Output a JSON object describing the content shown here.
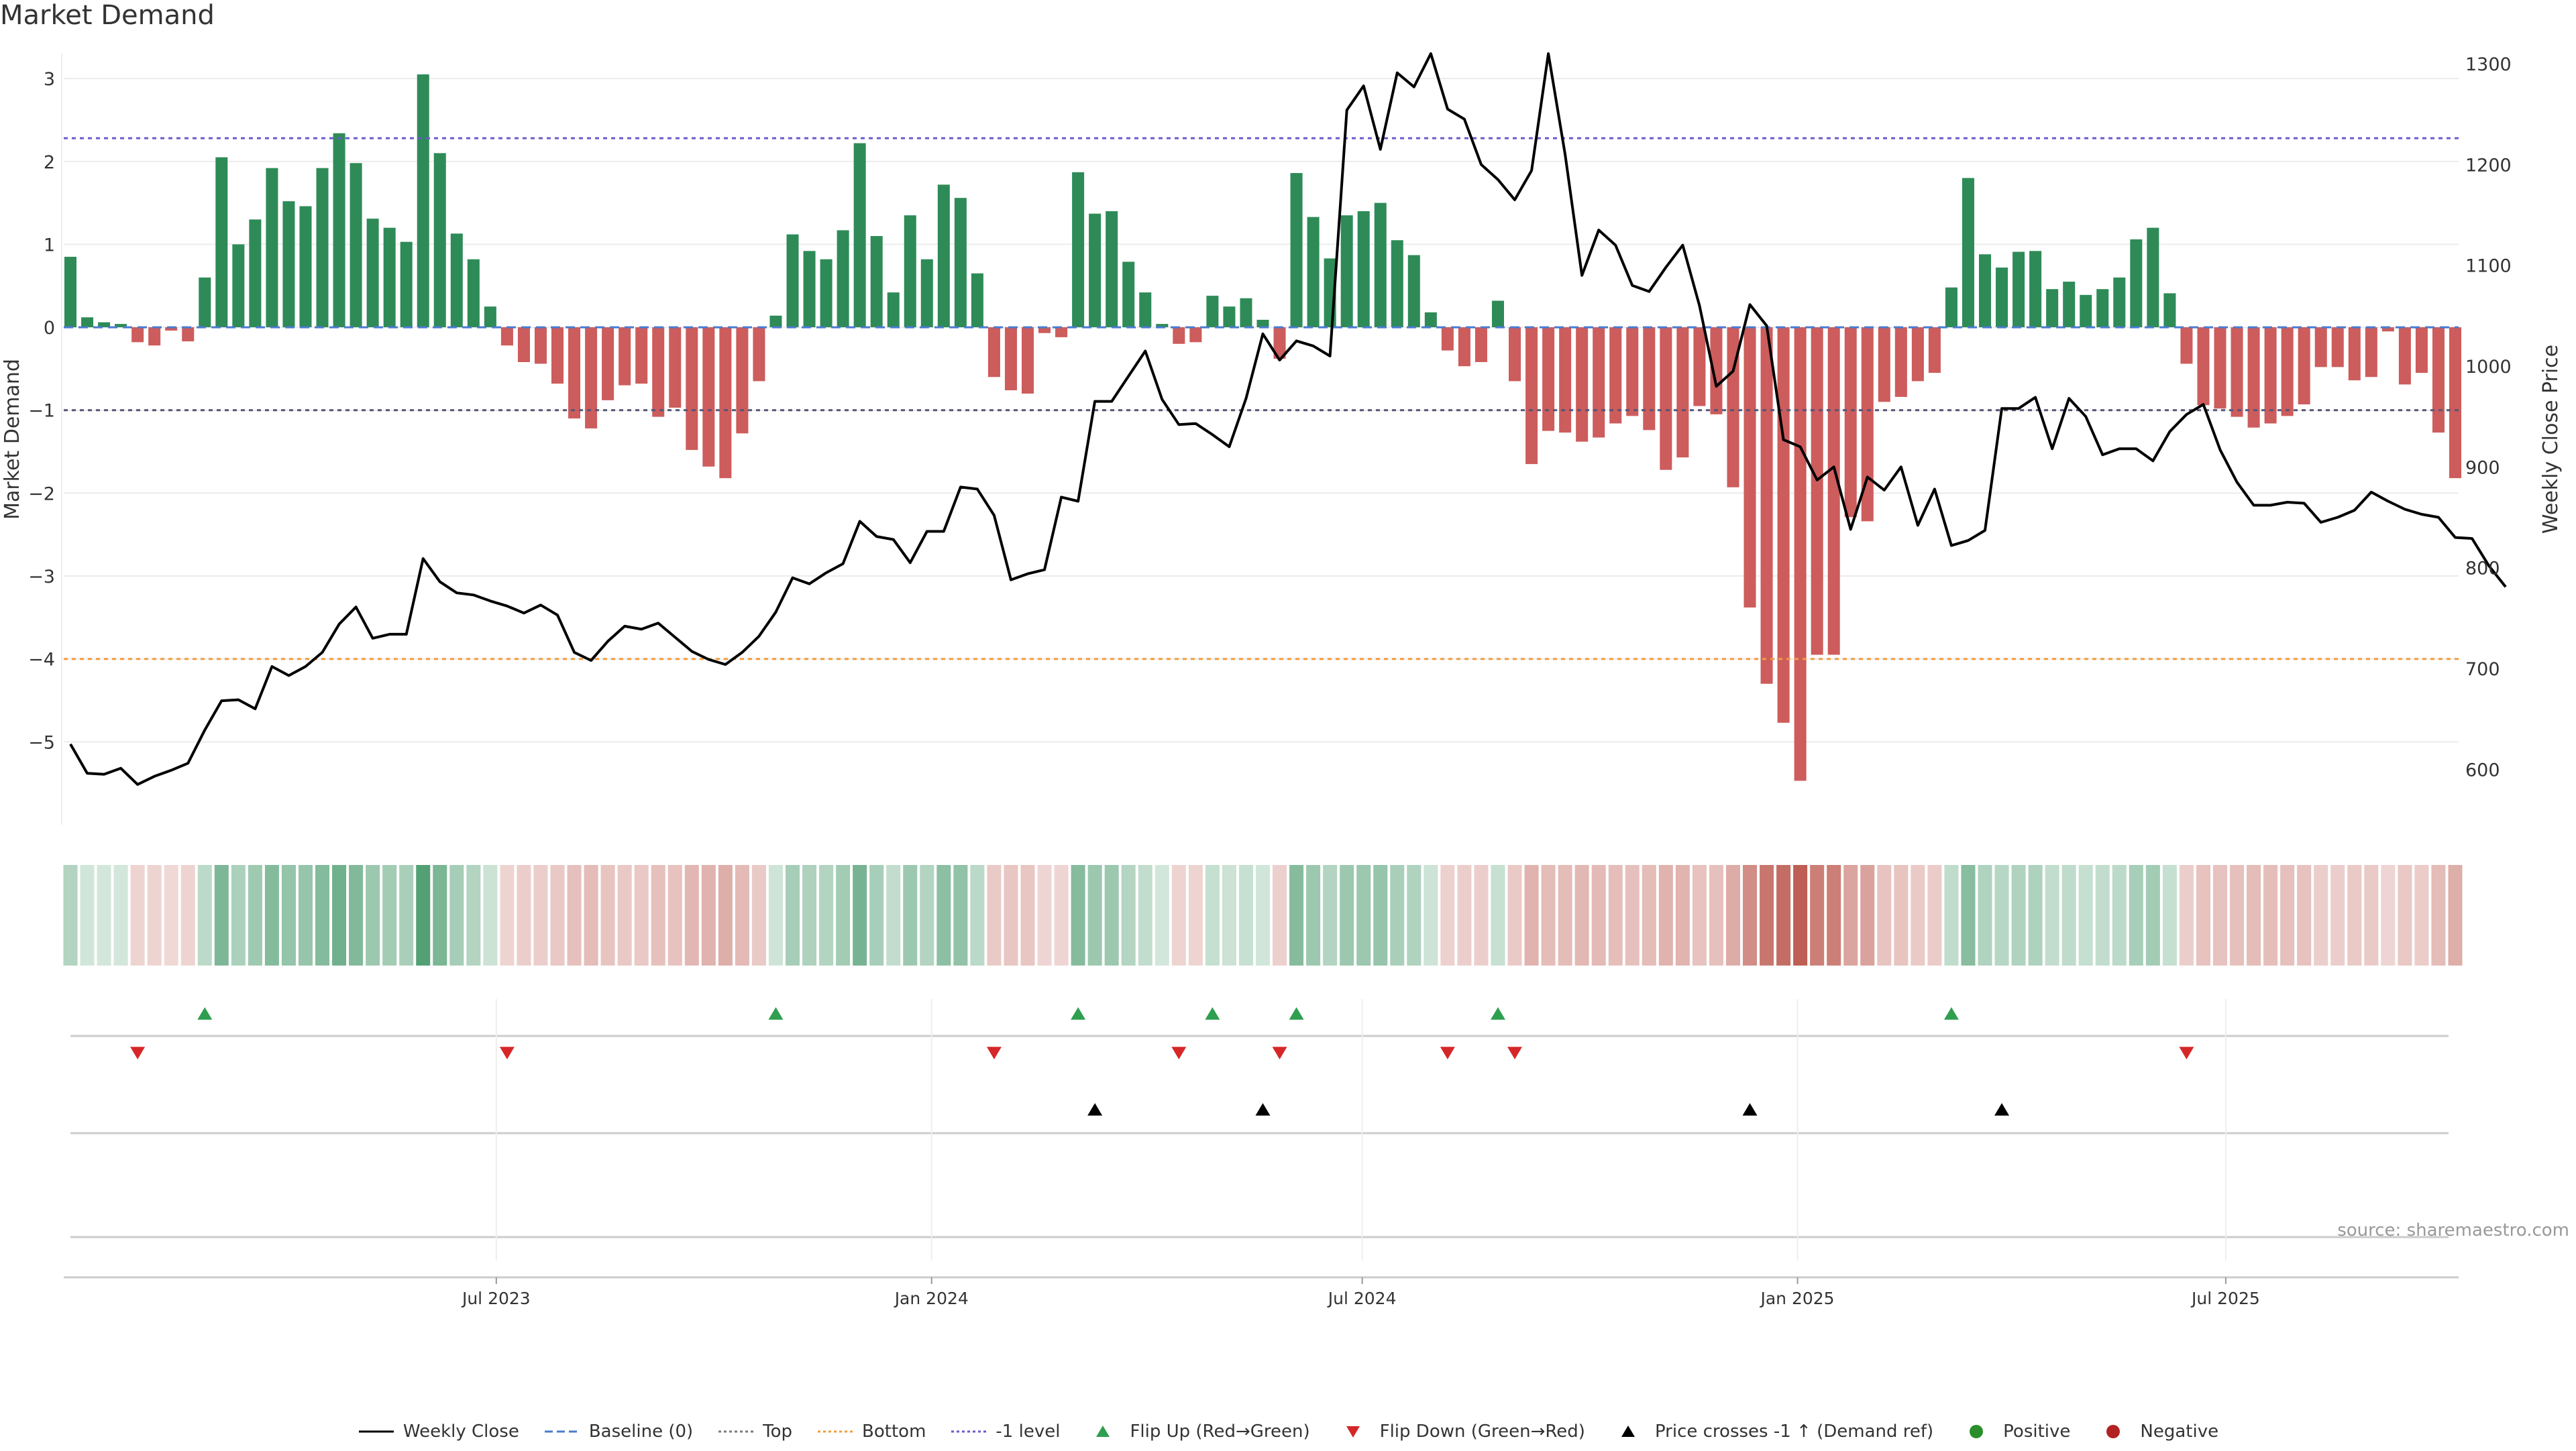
{
  "chart_data": {
    "type": "bar",
    "title": "Market Demand",
    "ylabel": "Market Demand",
    "y2label": "Weekly Close Price",
    "ylim": [
      -6.0,
      3.3
    ],
    "y2lim": [
      545,
      1310
    ],
    "yticks": [
      3,
      2,
      1,
      0,
      -1,
      -2,
      -3,
      -4,
      -5
    ],
    "y2ticks": [
      1300,
      1200,
      1100,
      1000,
      900,
      800,
      700,
      600
    ],
    "x_start": "2023-01-02",
    "x_end": "2025-10-06",
    "xticks": [
      {
        "date": "2023-07-01",
        "label": "Jul 2023"
      },
      {
        "date": "2024-01-01",
        "label": "Jan 2024"
      },
      {
        "date": "2024-07-01",
        "label": "Jul 2024"
      },
      {
        "date": "2025-01-01",
        "label": "Jan 2025"
      },
      {
        "date": "2025-07-01",
        "label": "Jul 2025"
      }
    ],
    "reference_lines": {
      "baseline": 0,
      "top": 2.28,
      "bottom": -4.0,
      "minus_one_level": -1
    },
    "demand": [
      0.85,
      0.12,
      0.06,
      0.04,
      -0.18,
      -0.22,
      -0.04,
      -0.17,
      0.6,
      2.05,
      1.0,
      1.3,
      1.92,
      1.52,
      1.46,
      1.92,
      2.34,
      1.98,
      1.31,
      1.2,
      1.03,
      3.05,
      2.1,
      1.13,
      0.82,
      0.25,
      -0.22,
      -0.42,
      -0.44,
      -0.68,
      -1.1,
      -1.22,
      -0.88,
      -0.7,
      -0.68,
      -1.08,
      -0.97,
      -1.48,
      -1.68,
      -1.82,
      -1.28,
      -0.65,
      0.14,
      1.12,
      0.92,
      0.82,
      1.17,
      2.22,
      1.1,
      0.42,
      1.35,
      0.82,
      1.72,
      1.56,
      0.65,
      -0.6,
      -0.76,
      -0.8,
      -0.07,
      -0.12,
      1.87,
      1.37,
      1.4,
      0.79,
      0.42,
      0.04,
      -0.2,
      -0.18,
      0.38,
      0.25,
      0.35,
      0.09,
      -0.38,
      1.86,
      1.33,
      0.83,
      1.35,
      1.4,
      1.5,
      1.05,
      0.87,
      0.18,
      -0.28,
      -0.47,
      -0.42,
      0.32,
      -0.65,
      -1.65,
      -1.25,
      -1.27,
      -1.38,
      -1.33,
      -1.16,
      -1.07,
      -1.24,
      -1.72,
      -1.57,
      -0.95,
      -1.05,
      -1.93,
      -3.38,
      -4.3,
      -4.77,
      -5.47,
      -3.95,
      -3.95,
      -2.29,
      -2.34,
      -0.9,
      -0.84,
      -0.65,
      -0.55,
      0.48,
      1.8,
      0.88,
      0.72,
      0.91,
      0.92,
      0.46,
      0.55,
      0.39,
      0.46,
      0.6,
      1.06,
      1.2,
      0.41,
      -0.44,
      -0.94,
      -0.98,
      -1.08,
      -1.21,
      -1.16,
      -1.07,
      -0.93,
      -0.48,
      -0.48,
      -0.64,
      -0.6,
      -0.05,
      -0.69,
      -0.55,
      -1.27,
      -1.82
    ],
    "weekly_close": [
      625,
      596,
      595,
      601,
      585,
      593,
      599,
      606,
      639,
      668,
      669,
      660,
      702,
      693,
      702,
      716,
      744,
      761,
      730,
      734,
      734,
      809,
      786,
      775,
      773,
      767,
      762,
      755,
      763,
      753,
      716,
      708,
      727,
      742,
      739,
      745,
      731,
      717,
      709,
      704,
      716,
      732,
      756,
      790,
      784,
      795,
      804,
      846,
      831,
      828,
      805,
      836,
      836,
      880,
      878,
      852,
      788,
      794,
      798,
      870,
      866,
      965,
      965,
      990,
      1015,
      967,
      942,
      943,
      932,
      920,
      968,
      1032,
      1006,
      1025,
      1020,
      1010,
      1254,
      1278,
      1215,
      1291,
      1277,
      1310,
      1255,
      1245,
      1200,
      1185,
      1165,
      1194,
      1310,
      1210,
      1090,
      1135,
      1120,
      1080,
      1074,
      1098,
      1120,
      1060,
      980,
      995,
      1061,
      1040,
      927,
      920,
      887,
      900,
      838,
      890,
      877,
      900,
      842,
      878,
      822,
      827,
      837,
      958,
      958,
      969,
      918,
      968,
      950,
      912,
      918,
      918,
      906,
      935,
      952,
      962,
      917,
      885,
      862,
      862,
      865,
      864,
      845,
      850,
      857,
      875,
      866,
      858,
      853,
      850,
      830,
      829,
      802,
      781
    ]
  },
  "legend": [
    {
      "key": "weekly_close",
      "label": "Weekly Close",
      "color": "#000000",
      "symbol": "line-solid"
    },
    {
      "key": "baseline",
      "label": "Baseline (0)",
      "color": "#4a7bd0",
      "symbol": "line-dashed"
    },
    {
      "key": "top",
      "label": "Top",
      "color": "#7a7a7a",
      "symbol": "line-dotted"
    },
    {
      "key": "bottom",
      "label": "Bottom",
      "color": "#f39c3d",
      "symbol": "line-dotted"
    },
    {
      "key": "minus_one",
      "label": "-1 level",
      "color": "#6a5acd",
      "symbol": "line-dotted"
    },
    {
      "key": "flip_up",
      "label": "Flip Up (Red→Green)",
      "color": "#2e9e4f",
      "symbol": "triangle-up"
    },
    {
      "key": "flip_down",
      "label": "Flip Down (Green→Red)",
      "color": "#d62728",
      "symbol": "triangle-down"
    },
    {
      "key": "price_cross",
      "label": "Price crosses -1 ↑ (Demand ref)",
      "color": "#000000",
      "symbol": "triangle-up"
    },
    {
      "key": "positive",
      "label": "Positive",
      "color": "#2a8f2a",
      "symbol": "circle"
    },
    {
      "key": "negative",
      "label": "Negative",
      "color": "#b22222",
      "symbol": "circle"
    }
  ],
  "colors": {
    "positive_bar": "#2e8b57",
    "negative_bar": "#cd5c5c",
    "heat_positive": "#2e8b57",
    "heat_negative": "#b03a2e",
    "flip_up": "#2e9e4f",
    "flip_down": "#d62728",
    "price_cross": "#000000"
  },
  "source": "source: sharemaestro.com"
}
